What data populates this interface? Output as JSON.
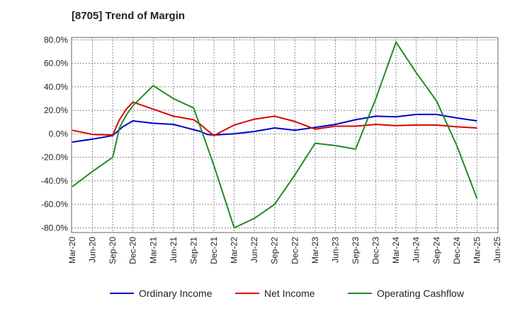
{
  "chart_data": {
    "type": "line",
    "title": "[8705]  Trend of Margin",
    "x_ticks": [
      "Mar-20",
      "Jun-20",
      "Sep-20",
      "Dec-20",
      "Mar-21",
      "Jun-21",
      "Sep-21",
      "Dec-21",
      "Mar-22",
      "Jun-22",
      "Sep-22",
      "Dec-22",
      "Mar-23",
      "Jun-23",
      "Sep-23",
      "Dec-23",
      "Mar-24",
      "Jun-24",
      "Sep-24",
      "Dec-24",
      "Mar-25",
      "Jun-25"
    ],
    "y_ticks": [
      "80.0%",
      "60.0%",
      "40.0%",
      "20.0%",
      "0.0%",
      "-20.0%",
      "-40.0%",
      "-60.0%",
      "-80.0%"
    ],
    "ylim": [
      -84,
      82
    ],
    "grid": true,
    "legend_position": "bottom",
    "series": [
      {
        "name": "Ordinary Income",
        "color": "#0000cc",
        "points": [
          [
            0,
            -7
          ],
          [
            1,
            -4.5
          ],
          [
            2,
            -1.5
          ],
          [
            2.5,
            6
          ],
          [
            3,
            11
          ],
          [
            4,
            9
          ],
          [
            5,
            8
          ],
          [
            6,
            3.5
          ],
          [
            6.33,
            2
          ],
          [
            6.67,
            -0.5
          ],
          [
            7,
            -1
          ],
          [
            8,
            0
          ],
          [
            9,
            2
          ],
          [
            10,
            5
          ],
          [
            11,
            3
          ],
          [
            12,
            5.5
          ],
          [
            13,
            8
          ],
          [
            14,
            12
          ],
          [
            15,
            15
          ],
          [
            16,
            14.5
          ],
          [
            17,
            16.5
          ],
          [
            18,
            16.5
          ],
          [
            19,
            13.5
          ],
          [
            20,
            11
          ]
        ]
      },
      {
        "name": "Net Income",
        "color": "#dd0000",
        "points": [
          [
            0,
            3
          ],
          [
            1,
            -0.5
          ],
          [
            2,
            -1
          ],
          [
            2.33,
            12
          ],
          [
            2.67,
            21
          ],
          [
            3,
            27
          ],
          [
            4,
            21
          ],
          [
            5,
            15
          ],
          [
            6,
            12
          ],
          [
            6.33,
            8
          ],
          [
            6.67,
            3
          ],
          [
            7,
            -1.5
          ],
          [
            8,
            7.5
          ],
          [
            9,
            12.5
          ],
          [
            10,
            15
          ],
          [
            11,
            10.5
          ],
          [
            12,
            4
          ],
          [
            13,
            6.5
          ],
          [
            14,
            6.5
          ],
          [
            15,
            8
          ],
          [
            16,
            7
          ],
          [
            17,
            7.5
          ],
          [
            18,
            7.5
          ],
          [
            19,
            6
          ],
          [
            20,
            5
          ]
        ]
      },
      {
        "name": "Operating Cashflow",
        "color": "#228b22",
        "points": [
          [
            0,
            -45
          ],
          [
            1,
            -32
          ],
          [
            2,
            -20
          ],
          [
            2.33,
            5
          ],
          [
            2.67,
            16
          ],
          [
            3,
            24
          ],
          [
            4,
            41
          ],
          [
            5,
            30
          ],
          [
            6,
            22
          ],
          [
            7,
            -27
          ],
          [
            8,
            -80
          ],
          [
            9,
            -72
          ],
          [
            10,
            -60
          ],
          [
            11,
            -35
          ],
          [
            12,
            -8
          ],
          [
            13,
            -10
          ],
          [
            14,
            -13
          ],
          [
            15,
            30
          ],
          [
            16,
            78
          ],
          [
            17,
            52
          ],
          [
            18,
            28
          ],
          [
            19,
            -10
          ],
          [
            20,
            -55
          ]
        ]
      }
    ]
  }
}
